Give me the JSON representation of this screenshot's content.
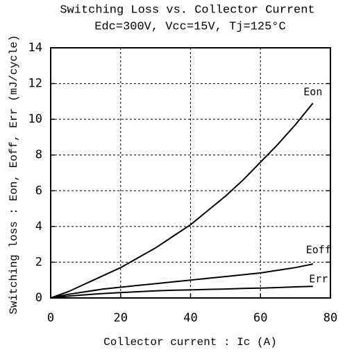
{
  "chart_data": {
    "type": "line",
    "title": "Switching Loss vs. Collector Current",
    "subtitle": "Edc=300V, Vcc=15V, Tj=125°C",
    "x_label": "Collector current : Ic  (A)",
    "y_label": "Switching loss : Eon, Eoff, Err  (mJ/cycle)",
    "x": [
      0,
      5,
      10,
      15,
      20,
      25,
      30,
      35,
      40,
      45,
      50,
      55,
      60,
      65,
      70,
      75
    ],
    "series": [
      {
        "name": "Eon",
        "color": "#000000",
        "values": [
          0,
          0.35,
          0.8,
          1.25,
          1.7,
          2.25,
          2.8,
          3.45,
          4.1,
          4.9,
          5.7,
          6.6,
          7.6,
          8.6,
          9.7,
          10.9
        ]
      },
      {
        "name": "Eoff",
        "color": "#000000",
        "values": [
          0,
          0.2,
          0.35,
          0.5,
          0.6,
          0.7,
          0.8,
          0.9,
          1.0,
          1.1,
          1.2,
          1.3,
          1.4,
          1.55,
          1.7,
          1.9
        ]
      },
      {
        "name": "Err",
        "color": "#000000",
        "values": [
          0,
          0.1,
          0.18,
          0.25,
          0.3,
          0.35,
          0.4,
          0.43,
          0.45,
          0.48,
          0.5,
          0.53,
          0.55,
          0.58,
          0.62,
          0.65
        ]
      }
    ],
    "xlim": [
      0,
      80
    ],
    "xticks": [
      0,
      20,
      40,
      60,
      80
    ],
    "ylim": [
      0,
      14
    ],
    "yticks": [
      0,
      2,
      4,
      6,
      8,
      10,
      12,
      14
    ],
    "grid": true
  }
}
